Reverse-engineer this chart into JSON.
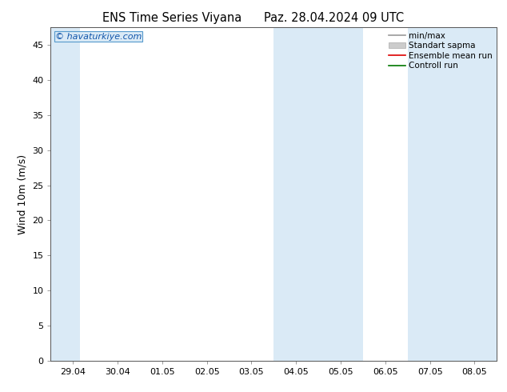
{
  "title_left": "ENS Time Series Viyana",
  "title_right": "Paz. 28.04.2024 09 UTC",
  "ylabel": "Wind 10m (m/s)",
  "ylim": [
    0,
    47.5
  ],
  "yticks": [
    0,
    5,
    10,
    15,
    20,
    25,
    30,
    35,
    40,
    45
  ],
  "xlabels": [
    "29.04",
    "30.04",
    "01.05",
    "02.05",
    "03.05",
    "04.05",
    "05.05",
    "06.05",
    "07.05",
    "08.05"
  ],
  "x_positions": [
    0,
    1,
    2,
    3,
    4,
    5,
    6,
    7,
    8,
    9
  ],
  "shade_bands": [
    {
      "xmin": -0.5,
      "xmax": 0.15
    },
    {
      "xmin": 4.5,
      "xmax": 6.5
    },
    {
      "xmin": 7.5,
      "xmax": 9.5
    }
  ],
  "shade_color": "#daeaf6",
  "background_color": "#ffffff",
  "watermark": "© havaturkiye.com",
  "watermark_color": "#1155aa",
  "legend_items": [
    {
      "label": "min/max",
      "color": "#999999",
      "linewidth": 1.2,
      "type": "line"
    },
    {
      "label": "Standart sapma",
      "color": "#cccccc",
      "linewidth": 6,
      "type": "band"
    },
    {
      "label": "Ensemble mean run",
      "color": "#dd0000",
      "linewidth": 1.2,
      "type": "line"
    },
    {
      "label": "Controll run",
      "color": "#007700",
      "linewidth": 1.2,
      "type": "line"
    }
  ],
  "title_fontsize": 10.5,
  "ylabel_fontsize": 9,
  "tick_fontsize": 8,
  "watermark_fontsize": 8,
  "legend_fontsize": 7.5,
  "fig_width": 6.34,
  "fig_height": 4.9,
  "dpi": 100
}
